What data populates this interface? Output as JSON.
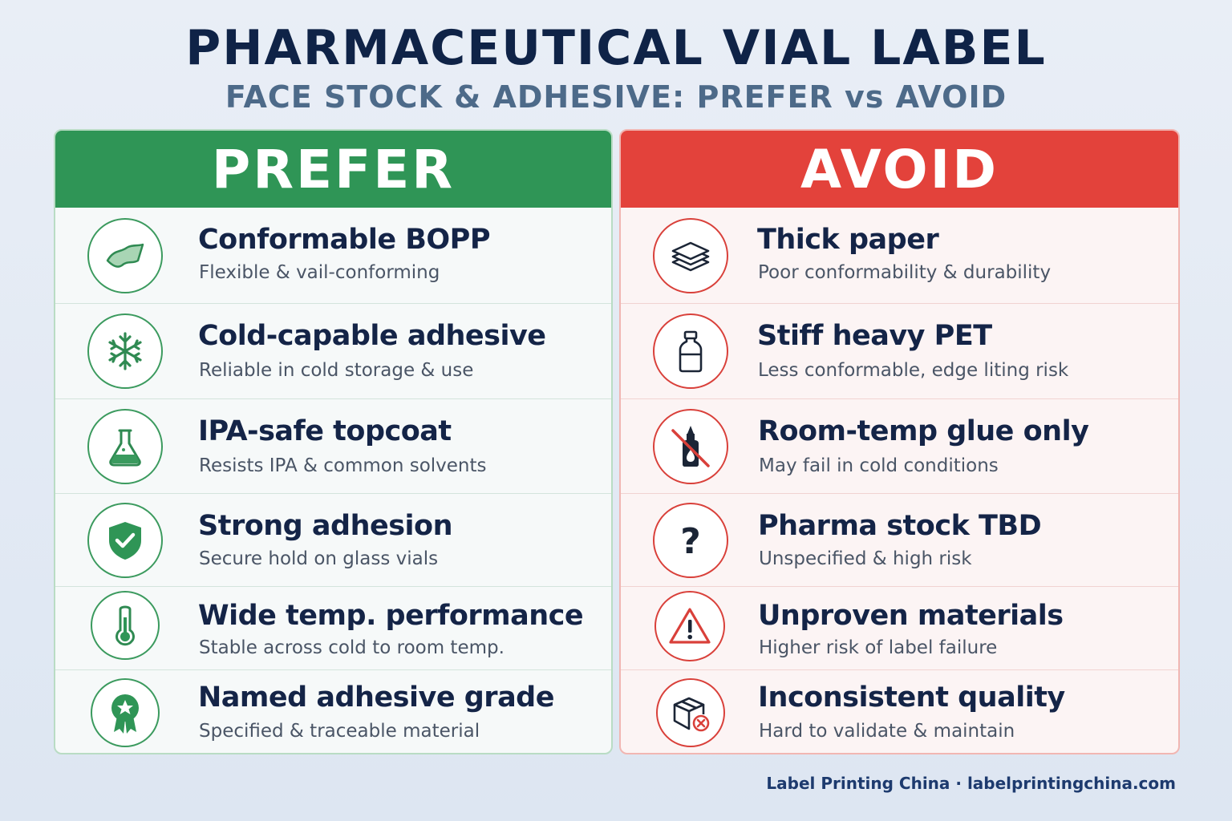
{
  "title": "PHARMACEUTICAL VIAL LABEL",
  "subtitle": "FACE STOCK & ADHESIVE: PREFER vs AVOID",
  "colors": {
    "prefer_accent": "#2f9556",
    "avoid_accent": "#e3423b",
    "title_color": "#0f2347",
    "subtitle_color": "#4d6a89"
  },
  "prefer": {
    "header": "PREFER",
    "items": [
      {
        "icon": "film-sheet-icon",
        "title": "Conformable BOPP",
        "desc": "Flexible & vail-conforming"
      },
      {
        "icon": "snowflake-icon",
        "title": "Cold-capable adhesive",
        "desc": "Reliable in cold storage & use"
      },
      {
        "icon": "flask-icon",
        "title": "IPA-safe topcoat",
        "desc": "Resists IPA & common solvents"
      },
      {
        "icon": "shield-check-icon",
        "title": "Strong adhesion",
        "desc": "Secure hold on glass vials"
      },
      {
        "icon": "thermometer-icon",
        "title": "Wide temp. performance",
        "desc": "Stable across cold to room temp."
      },
      {
        "icon": "award-badge-icon",
        "title": "Named adhesive grade",
        "desc": "Specified & traceable material"
      }
    ]
  },
  "avoid": {
    "header": "AVOID",
    "items": [
      {
        "icon": "paper-stack-icon",
        "title": "Thick paper",
        "desc": "Poor conformability & durability"
      },
      {
        "icon": "bottle-icon",
        "title": "Stiff heavy PET",
        "desc": "Less conformable, edge liting risk"
      },
      {
        "icon": "no-glue-icon",
        "title": "Room-temp glue only",
        "desc": "May fail in cold conditions"
      },
      {
        "icon": "question-mark-icon",
        "title": "Pharma stock TBD",
        "desc": "Unspecified & high risk"
      },
      {
        "icon": "warning-triangle-icon",
        "title": "Unproven materials",
        "desc": "Higher risk of label failure"
      },
      {
        "icon": "box-error-icon",
        "title": "Inconsistent quality",
        "desc": "Hard to validate & maintain"
      }
    ]
  },
  "footer": "Label Printing China · labelprintingchina.com"
}
